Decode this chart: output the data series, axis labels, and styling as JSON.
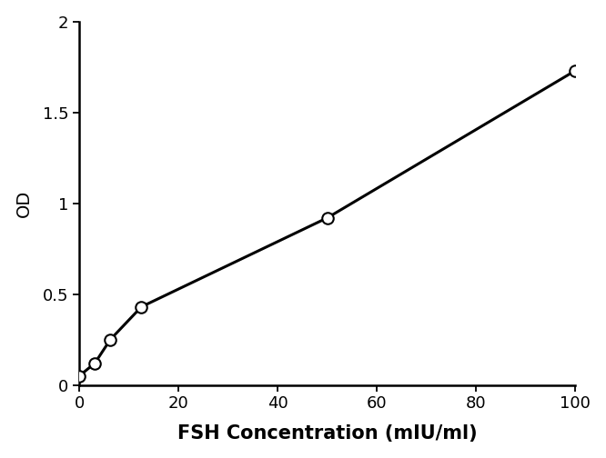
{
  "x": [
    0,
    3.12,
    6.25,
    12.5,
    50,
    100
  ],
  "y": [
    0.05,
    0.12,
    0.25,
    0.43,
    0.92,
    1.73
  ],
  "line_color": "#000000",
  "marker_face_color": "#ffffff",
  "marker_edge_color": "#000000",
  "marker_size": 9,
  "marker_style": "o",
  "line_width": 2.2,
  "xlabel": "FSH Concentration (mIU/ml)",
  "ylabel": "OD",
  "xlim": [
    0,
    100
  ],
  "ylim": [
    0,
    2
  ],
  "xticks": [
    0,
    20,
    40,
    60,
    80,
    100
  ],
  "yticks": [
    0,
    0.5,
    1.0,
    1.5,
    2.0
  ],
  "ytick_labels": [
    "0",
    "0.5",
    "1",
    "1.5",
    "2"
  ],
  "xlabel_fontsize": 15,
  "ylabel_fontsize": 14,
  "tick_fontsize": 13,
  "xlabel_fontweight": "bold",
  "marker_edge_width": 1.5,
  "spine_linewidth": 1.8,
  "background_color": "#ffffff"
}
